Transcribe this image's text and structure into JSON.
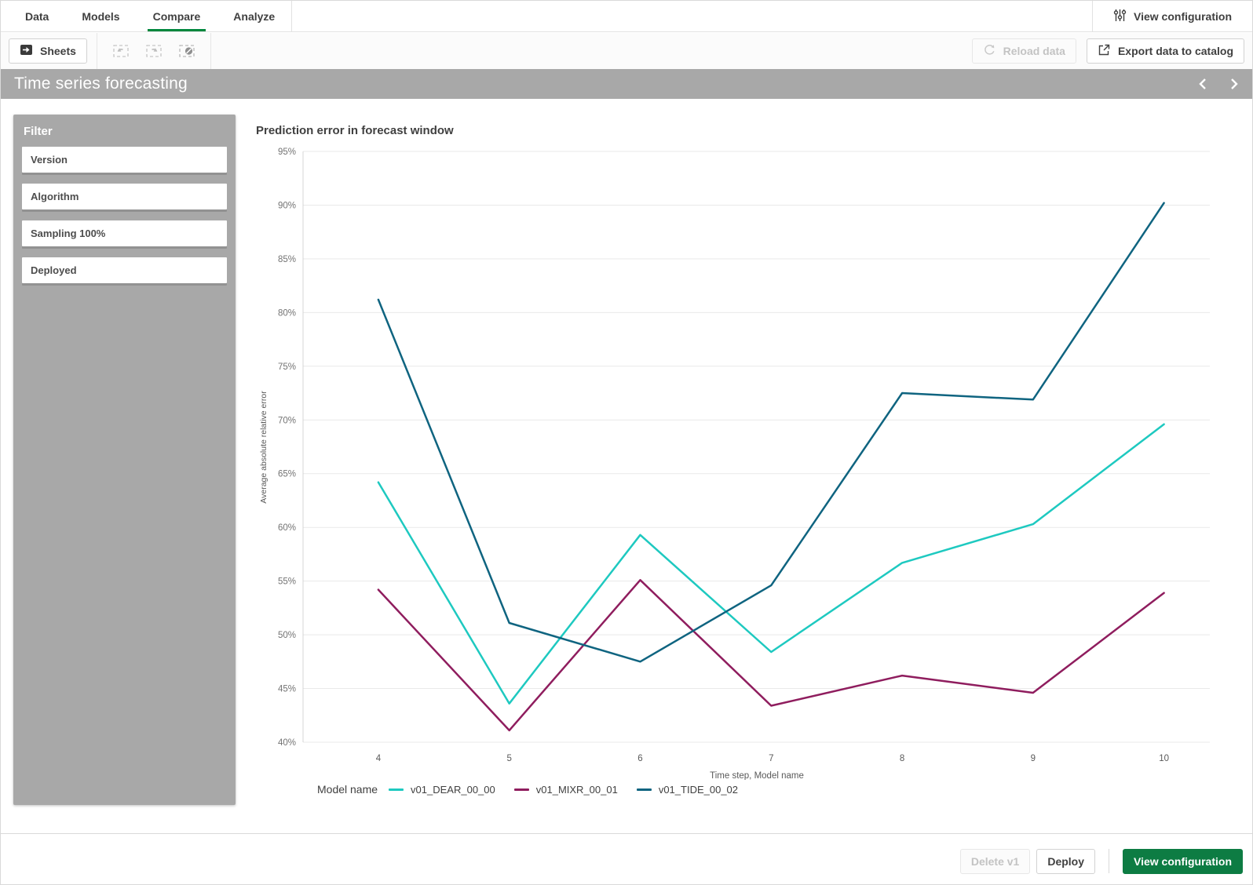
{
  "nav": {
    "tabs": [
      {
        "label": "Data",
        "active": false
      },
      {
        "label": "Models",
        "active": false
      },
      {
        "label": "Compare",
        "active": true
      },
      {
        "label": "Analyze",
        "active": false
      }
    ],
    "view_configuration_label": "View configuration"
  },
  "toolbar": {
    "sheets_label": "Sheets",
    "reload_label": "Reload data",
    "export_label": "Export data to catalog"
  },
  "sheet_title": "Time series forecasting",
  "filter": {
    "header": "Filter",
    "items": [
      {
        "label": "Version"
      },
      {
        "label": "Algorithm"
      },
      {
        "label": "Sampling 100%"
      },
      {
        "label": "Deployed"
      }
    ]
  },
  "chart_data": {
    "type": "line",
    "title": "Prediction error in forecast window",
    "xlabel": "Time step, Model name",
    "ylabel": "Average absolute relative error",
    "x": [
      4,
      5,
      6,
      7,
      8,
      9,
      10
    ],
    "ylim": [
      40,
      95
    ],
    "y_tick_step": 5,
    "y_tick_suffix": "%",
    "grid": true,
    "legend_position": "bottom",
    "legend_title": "Model name",
    "series": [
      {
        "name": "v01_DEAR_00_00",
        "color": "#1ec9c0",
        "values": [
          64.2,
          43.6,
          59.3,
          48.4,
          56.7,
          60.3,
          69.6
        ]
      },
      {
        "name": "v01_MIXR_00_01",
        "color": "#8f1d5e",
        "values": [
          54.2,
          41.1,
          55.1,
          43.4,
          46.2,
          44.6,
          53.9
        ]
      },
      {
        "name": "v01_TIDE_00_02",
        "color": "#0f6480",
        "values": [
          81.2,
          51.1,
          47.5,
          54.6,
          72.5,
          71.9,
          90.2
        ]
      }
    ]
  },
  "footer": {
    "delete_label": "Delete v1",
    "deploy_label": "Deploy",
    "view_configuration_label": "View configuration"
  },
  "colors": {
    "accent_green": "#00873d",
    "button_green": "#0d7c43",
    "bar_gray": "#a8a8a8"
  }
}
